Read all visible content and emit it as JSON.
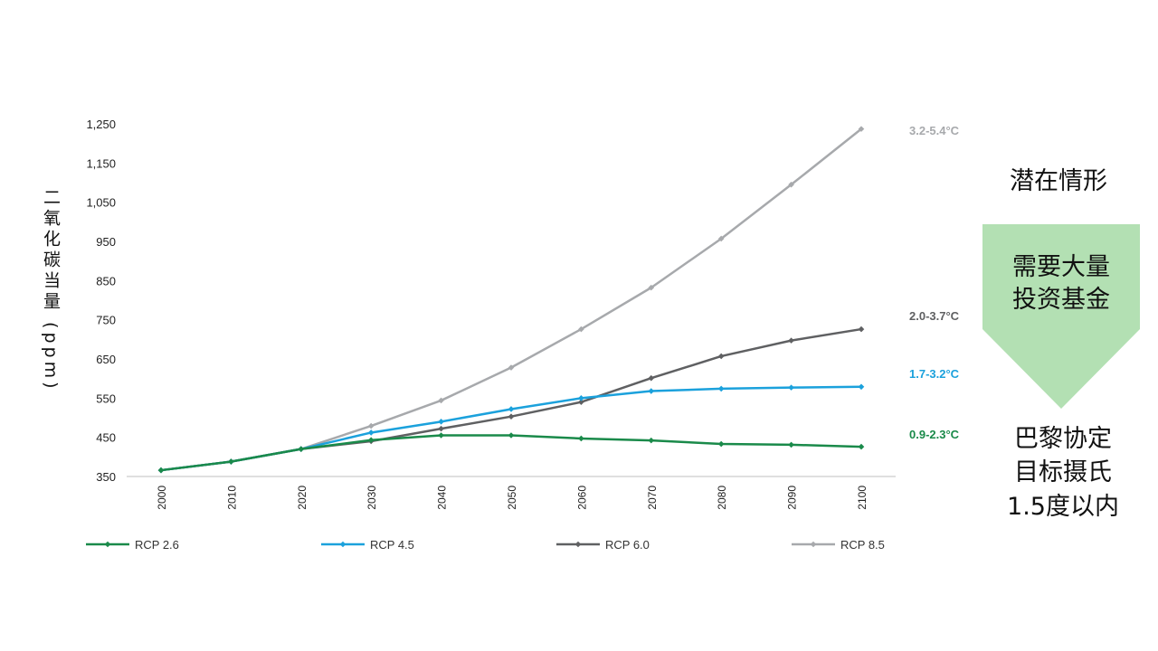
{
  "chart_data": {
    "type": "line",
    "ylabel": "二氧化碳当量 (ppm)",
    "ylim": [
      350,
      1250
    ],
    "yticks": [
      "1,250",
      "1,150",
      "1,050",
      "950",
      "850",
      "750",
      "650",
      "550",
      "450",
      "350"
    ],
    "ytick_values": [
      1250,
      1150,
      1050,
      950,
      850,
      750,
      650,
      550,
      450,
      350
    ],
    "x": [
      "2000",
      "2010",
      "2020",
      "2030",
      "2040",
      "2050",
      "2060",
      "2070",
      "2080",
      "2090",
      "2100"
    ],
    "series": [
      {
        "name": "RCP 2.6",
        "color": "#1a8a4a",
        "values": [
          366,
          388,
          420,
          443,
          455,
          455,
          447,
          442,
          433,
          431,
          426
        ],
        "range_label": "0.9-2.3°C"
      },
      {
        "name": "RCP 4.5",
        "color": "#1ba1dc",
        "values": [
          366,
          388,
          420,
          462,
          490,
          522,
          550,
          568,
          574,
          577,
          579
        ],
        "range_label": "1.7-3.2°C"
      },
      {
        "name": "RCP 6.0",
        "color": "#5f6062",
        "values": [
          366,
          388,
          420,
          440,
          472,
          503,
          540,
          601,
          657,
          697,
          726
        ],
        "range_label": "2.0-3.7°C"
      },
      {
        "name": "RCP 8.5",
        "color": "#a7a9ac",
        "values": [
          366,
          388,
          420,
          479,
          544,
          628,
          726,
          832,
          957,
          1095,
          1237
        ],
        "range_label": "3.2-5.4°C"
      }
    ],
    "grid": false,
    "legend": "bottom"
  },
  "side": {
    "scenario_title": "潜在情形",
    "arrow_lines": [
      "需要大量",
      "投资基金"
    ],
    "paris_lines": [
      "巴黎协定",
      "目标摄氏",
      "1.5度以内"
    ],
    "arrow_color": "#b3e0b3"
  }
}
